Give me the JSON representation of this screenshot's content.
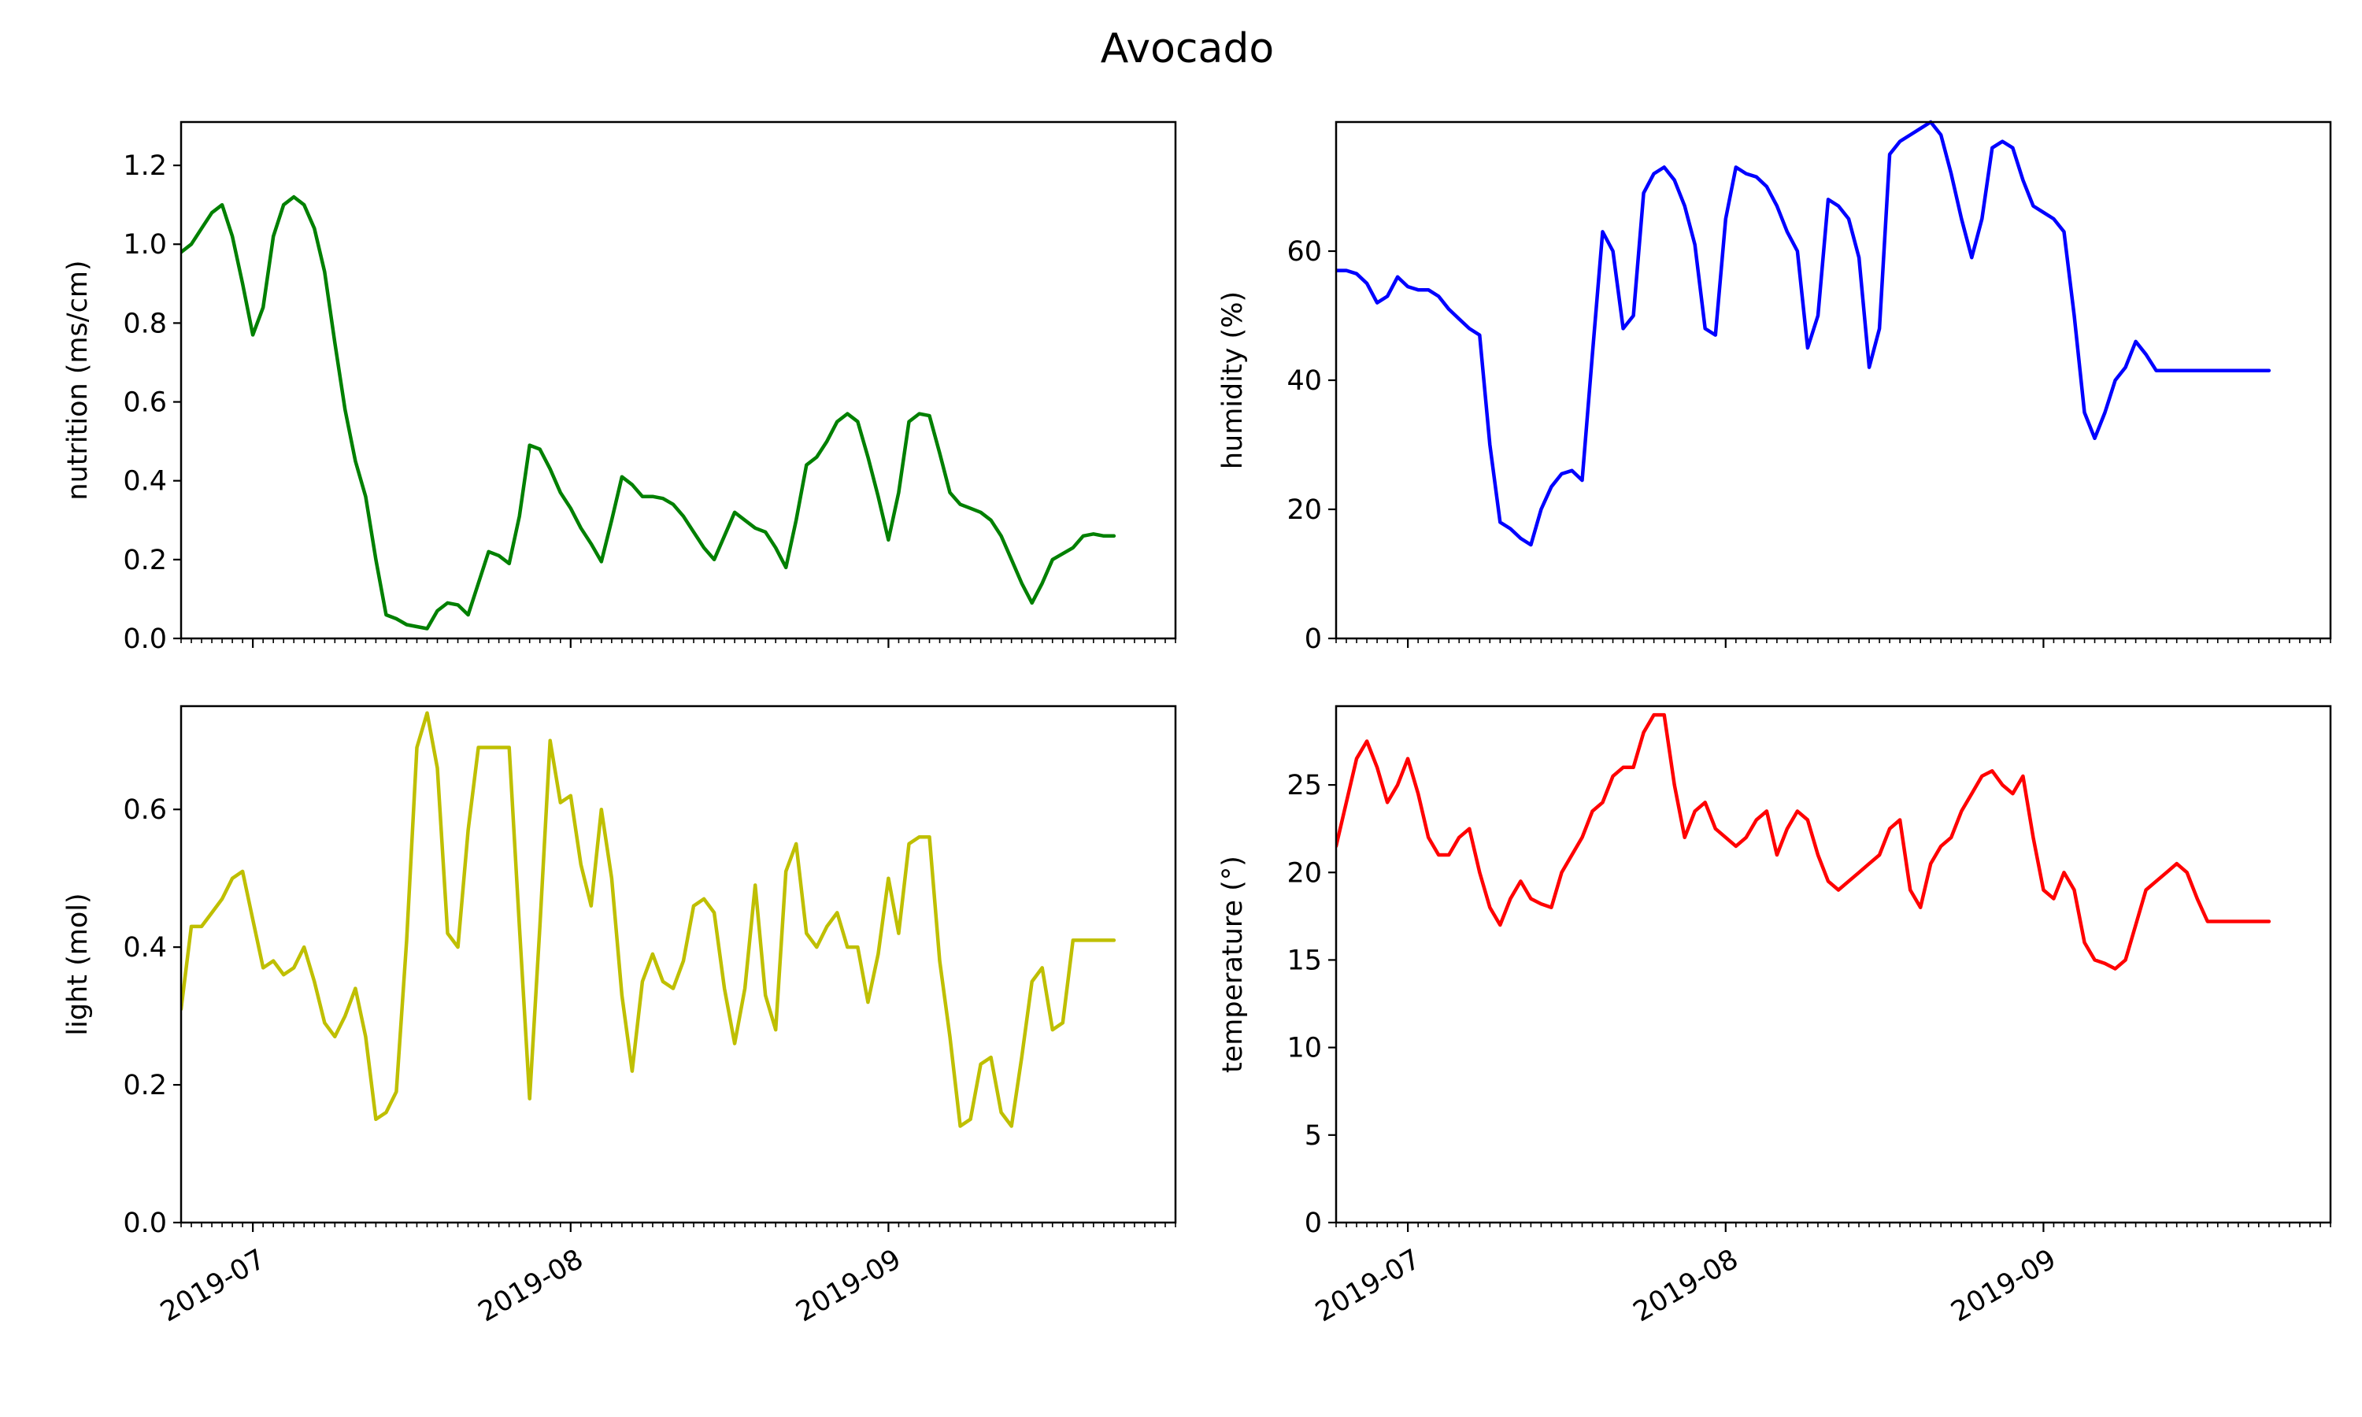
{
  "figure": {
    "title": "Avocado"
  },
  "chart_data": [
    {
      "type": "line",
      "name": "nutrition",
      "ylabel": "nutrition (ms/cm)",
      "xlabel": "",
      "xlim": [
        "2019-06-24",
        "2019-09-29"
      ],
      "ylim": [
        0,
        1.31
      ],
      "yticks": [
        0.0,
        0.2,
        0.4,
        0.6,
        0.8,
        1.0,
        1.2
      ],
      "ytick_labels": [
        "0.0",
        "0.2",
        "0.4",
        "0.6",
        "0.8",
        "1.0",
        "1.2"
      ],
      "xticks": [
        "2019-07-01",
        "2019-08-01",
        "2019-09-01"
      ],
      "xtick_labels": [],
      "grid": false,
      "color": "#008000",
      "x": [
        "2019-06-24",
        "2019-06-25",
        "2019-06-26",
        "2019-06-27",
        "2019-06-28",
        "2019-06-29",
        "2019-06-30",
        "2019-07-01",
        "2019-07-02",
        "2019-07-03",
        "2019-07-04",
        "2019-07-05",
        "2019-07-06",
        "2019-07-07",
        "2019-07-08",
        "2019-07-09",
        "2019-07-10",
        "2019-07-11",
        "2019-07-12",
        "2019-07-13",
        "2019-07-14",
        "2019-07-15",
        "2019-07-16",
        "2019-07-17",
        "2019-07-18",
        "2019-07-19",
        "2019-07-20",
        "2019-07-21",
        "2019-07-22",
        "2019-07-23",
        "2019-07-24",
        "2019-07-25",
        "2019-07-26",
        "2019-07-27",
        "2019-07-28",
        "2019-07-29",
        "2019-07-30",
        "2019-07-31",
        "2019-08-01",
        "2019-08-02",
        "2019-08-03",
        "2019-08-04",
        "2019-08-05",
        "2019-08-06",
        "2019-08-07",
        "2019-08-08",
        "2019-08-09",
        "2019-08-10",
        "2019-08-11",
        "2019-08-12",
        "2019-08-13",
        "2019-08-14",
        "2019-08-15",
        "2019-08-16",
        "2019-08-17",
        "2019-08-18",
        "2019-08-19",
        "2019-08-20",
        "2019-08-21",
        "2019-08-22",
        "2019-08-23",
        "2019-08-24",
        "2019-08-25",
        "2019-08-26",
        "2019-08-27",
        "2019-08-28",
        "2019-08-29",
        "2019-08-30",
        "2019-08-31",
        "2019-09-01",
        "2019-09-02",
        "2019-09-03",
        "2019-09-04",
        "2019-09-05",
        "2019-09-06",
        "2019-09-07",
        "2019-09-08",
        "2019-09-09",
        "2019-09-10",
        "2019-09-11",
        "2019-09-12",
        "2019-09-13",
        "2019-09-14",
        "2019-09-15",
        "2019-09-16",
        "2019-09-17",
        "2019-09-18",
        "2019-09-19",
        "2019-09-20",
        "2019-09-21",
        "2019-09-22",
        "2019-09-23"
      ],
      "y": [
        0.98,
        1.0,
        1.04,
        1.08,
        1.1,
        1.02,
        0.9,
        0.77,
        0.84,
        1.02,
        1.1,
        1.12,
        1.1,
        1.04,
        0.93,
        0.75,
        0.58,
        0.45,
        0.36,
        0.2,
        0.06,
        0.05,
        0.035,
        0.03,
        0.025,
        0.07,
        0.09,
        0.085,
        0.06,
        0.14,
        0.22,
        0.21,
        0.19,
        0.31,
        0.49,
        0.48,
        0.43,
        0.37,
        0.33,
        0.28,
        0.24,
        0.195,
        0.3,
        0.41,
        0.39,
        0.36,
        0.36,
        0.355,
        0.34,
        0.31,
        0.27,
        0.23,
        0.2,
        0.26,
        0.32,
        0.3,
        0.28,
        0.27,
        0.23,
        0.18,
        0.3,
        0.44,
        0.46,
        0.5,
        0.55,
        0.57,
        0.55,
        0.46,
        0.36,
        0.25,
        0.37,
        0.55,
        0.57,
        0.565,
        0.47,
        0.37,
        0.34,
        0.33,
        0.32,
        0.3,
        0.26,
        0.2,
        0.14,
        0.09,
        0.14,
        0.2,
        0.215,
        0.23,
        0.26,
        0.265,
        0.26,
        0.26
      ]
    },
    {
      "type": "line",
      "name": "humidity",
      "ylabel": "humidity (%)",
      "xlabel": "",
      "xlim": [
        "2019-06-24",
        "2019-09-29"
      ],
      "ylim": [
        0,
        80
      ],
      "yticks": [
        0,
        20,
        40,
        60
      ],
      "ytick_labels": [
        "0",
        "20",
        "40",
        "60"
      ],
      "xticks": [
        "2019-07-01",
        "2019-08-01",
        "2019-09-01"
      ],
      "xtick_labels": [],
      "grid": false,
      "color": "#0000ff",
      "x": [
        "2019-06-24",
        "2019-06-25",
        "2019-06-26",
        "2019-06-27",
        "2019-06-28",
        "2019-06-29",
        "2019-06-30",
        "2019-07-01",
        "2019-07-02",
        "2019-07-03",
        "2019-07-04",
        "2019-07-05",
        "2019-07-06",
        "2019-07-07",
        "2019-07-08",
        "2019-07-09",
        "2019-07-10",
        "2019-07-11",
        "2019-07-12",
        "2019-07-13",
        "2019-07-14",
        "2019-07-15",
        "2019-07-16",
        "2019-07-17",
        "2019-07-18",
        "2019-07-19",
        "2019-07-20",
        "2019-07-21",
        "2019-07-22",
        "2019-07-23",
        "2019-07-24",
        "2019-07-25",
        "2019-07-26",
        "2019-07-27",
        "2019-07-28",
        "2019-07-29",
        "2019-07-30",
        "2019-07-31",
        "2019-08-01",
        "2019-08-02",
        "2019-08-03",
        "2019-08-04",
        "2019-08-05",
        "2019-08-06",
        "2019-08-07",
        "2019-08-08",
        "2019-08-09",
        "2019-08-10",
        "2019-08-11",
        "2019-08-12",
        "2019-08-13",
        "2019-08-14",
        "2019-08-15",
        "2019-08-16",
        "2019-08-17",
        "2019-08-18",
        "2019-08-19",
        "2019-08-20",
        "2019-08-21",
        "2019-08-22",
        "2019-08-23",
        "2019-08-24",
        "2019-08-25",
        "2019-08-26",
        "2019-08-27",
        "2019-08-28",
        "2019-08-29",
        "2019-08-30",
        "2019-08-31",
        "2019-09-01",
        "2019-09-02",
        "2019-09-03",
        "2019-09-04",
        "2019-09-05",
        "2019-09-06",
        "2019-09-07",
        "2019-09-08",
        "2019-09-09",
        "2019-09-10",
        "2019-09-11",
        "2019-09-12",
        "2019-09-13",
        "2019-09-14",
        "2019-09-15",
        "2019-09-16",
        "2019-09-17",
        "2019-09-18",
        "2019-09-19",
        "2019-09-20",
        "2019-09-21",
        "2019-09-22",
        "2019-09-23"
      ],
      "y": [
        57,
        57,
        56.5,
        55,
        52,
        53,
        56,
        54.5,
        54,
        54,
        53,
        51,
        49.5,
        48,
        47,
        30,
        18,
        17,
        15.5,
        14.5,
        20,
        23.5,
        25.5,
        26,
        24.5,
        44,
        63,
        60,
        48,
        50,
        69,
        72,
        73,
        71,
        67,
        61,
        48,
        47,
        65,
        73,
        72,
        71.5,
        70,
        67,
        63,
        60,
        45,
        50,
        68,
        67,
        65,
        59,
        42,
        48,
        75,
        77,
        78,
        79,
        80,
        78,
        72,
        65,
        59,
        65,
        76,
        77,
        76,
        71,
        67,
        66,
        65,
        63,
        50,
        35,
        31,
        35,
        40,
        42,
        46,
        44,
        41.5,
        41.5,
        41.5,
        41.5,
        41.5,
        41.5,
        41.5,
        41.5,
        41.5,
        41.5,
        41.5,
        41.5
      ]
    },
    {
      "type": "line",
      "name": "light",
      "ylabel": "light (mol)",
      "xlabel": "",
      "xlim": [
        "2019-06-24",
        "2019-09-29"
      ],
      "ylim": [
        0,
        0.75
      ],
      "yticks": [
        0.0,
        0.2,
        0.4,
        0.6
      ],
      "ytick_labels": [
        "0.0",
        "0.2",
        "0.4",
        "0.6"
      ],
      "xticks": [
        "2019-07-01",
        "2019-08-01",
        "2019-09-01"
      ],
      "xtick_labels": [
        "2019-07",
        "2019-08",
        "2019-09"
      ],
      "grid": false,
      "color": "#bfbf00",
      "x": [
        "2019-06-24",
        "2019-06-25",
        "2019-06-26",
        "2019-06-27",
        "2019-06-28",
        "2019-06-29",
        "2019-06-30",
        "2019-07-01",
        "2019-07-02",
        "2019-07-03",
        "2019-07-04",
        "2019-07-05",
        "2019-07-06",
        "2019-07-07",
        "2019-07-08",
        "2019-07-09",
        "2019-07-10",
        "2019-07-11",
        "2019-07-12",
        "2019-07-13",
        "2019-07-14",
        "2019-07-15",
        "2019-07-16",
        "2019-07-17",
        "2019-07-18",
        "2019-07-19",
        "2019-07-20",
        "2019-07-21",
        "2019-07-22",
        "2019-07-23",
        "2019-07-24",
        "2019-07-25",
        "2019-07-26",
        "2019-07-27",
        "2019-07-28",
        "2019-07-29",
        "2019-07-30",
        "2019-07-31",
        "2019-08-01",
        "2019-08-02",
        "2019-08-03",
        "2019-08-04",
        "2019-08-05",
        "2019-08-06",
        "2019-08-07",
        "2019-08-08",
        "2019-08-09",
        "2019-08-10",
        "2019-08-11",
        "2019-08-12",
        "2019-08-13",
        "2019-08-14",
        "2019-08-15",
        "2019-08-16",
        "2019-08-17",
        "2019-08-18",
        "2019-08-19",
        "2019-08-20",
        "2019-08-21",
        "2019-08-22",
        "2019-08-23",
        "2019-08-24",
        "2019-08-25",
        "2019-08-26",
        "2019-08-27",
        "2019-08-28",
        "2019-08-29",
        "2019-08-30",
        "2019-08-31",
        "2019-09-01",
        "2019-09-02",
        "2019-09-03",
        "2019-09-04",
        "2019-09-05",
        "2019-09-06",
        "2019-09-07",
        "2019-09-08",
        "2019-09-09",
        "2019-09-10",
        "2019-09-11",
        "2019-09-12",
        "2019-09-13",
        "2019-09-14",
        "2019-09-15",
        "2019-09-16",
        "2019-09-17",
        "2019-09-18",
        "2019-09-19",
        "2019-09-20",
        "2019-09-21",
        "2019-09-22",
        "2019-09-23"
      ],
      "y": [
        0.31,
        0.43,
        0.43,
        0.45,
        0.47,
        0.5,
        0.51,
        0.44,
        0.37,
        0.38,
        0.36,
        0.37,
        0.4,
        0.35,
        0.29,
        0.27,
        0.3,
        0.34,
        0.27,
        0.15,
        0.16,
        0.19,
        0.41,
        0.69,
        0.74,
        0.66,
        0.42,
        0.4,
        0.57,
        0.69,
        0.69,
        0.69,
        0.69,
        0.43,
        0.18,
        0.43,
        0.7,
        0.61,
        0.62,
        0.52,
        0.46,
        0.6,
        0.5,
        0.33,
        0.22,
        0.35,
        0.39,
        0.35,
        0.34,
        0.38,
        0.46,
        0.47,
        0.45,
        0.34,
        0.26,
        0.34,
        0.49,
        0.33,
        0.28,
        0.51,
        0.55,
        0.42,
        0.4,
        0.43,
        0.45,
        0.4,
        0.4,
        0.32,
        0.39,
        0.5,
        0.42,
        0.55,
        0.56,
        0.56,
        0.38,
        0.27,
        0.14,
        0.15,
        0.23,
        0.24,
        0.16,
        0.14,
        0.24,
        0.35,
        0.37,
        0.28,
        0.29,
        0.41,
        0.41,
        0.41,
        0.41,
        0.41
      ]
    },
    {
      "type": "line",
      "name": "temperature",
      "ylabel": "temperature (°)",
      "xlabel": "",
      "xlim": [
        "2019-06-24",
        "2019-09-29"
      ],
      "ylim": [
        0,
        29.5
      ],
      "yticks": [
        0,
        5,
        10,
        15,
        20,
        25
      ],
      "ytick_labels": [
        "0",
        "5",
        "10",
        "15",
        "20",
        "25"
      ],
      "xticks": [
        "2019-07-01",
        "2019-08-01",
        "2019-09-01"
      ],
      "xtick_labels": [
        "2019-07",
        "2019-08",
        "2019-09"
      ],
      "grid": false,
      "color": "#ff0000",
      "x": [
        "2019-06-24",
        "2019-06-25",
        "2019-06-26",
        "2019-06-27",
        "2019-06-28",
        "2019-06-29",
        "2019-06-30",
        "2019-07-01",
        "2019-07-02",
        "2019-07-03",
        "2019-07-04",
        "2019-07-05",
        "2019-07-06",
        "2019-07-07",
        "2019-07-08",
        "2019-07-09",
        "2019-07-10",
        "2019-07-11",
        "2019-07-12",
        "2019-07-13",
        "2019-07-14",
        "2019-07-15",
        "2019-07-16",
        "2019-07-17",
        "2019-07-18",
        "2019-07-19",
        "2019-07-20",
        "2019-07-21",
        "2019-07-22",
        "2019-07-23",
        "2019-07-24",
        "2019-07-25",
        "2019-07-26",
        "2019-07-27",
        "2019-07-28",
        "2019-07-29",
        "2019-07-30",
        "2019-07-31",
        "2019-08-01",
        "2019-08-02",
        "2019-08-03",
        "2019-08-04",
        "2019-08-05",
        "2019-08-06",
        "2019-08-07",
        "2019-08-08",
        "2019-08-09",
        "2019-08-10",
        "2019-08-11",
        "2019-08-12",
        "2019-08-13",
        "2019-08-14",
        "2019-08-15",
        "2019-08-16",
        "2019-08-17",
        "2019-08-18",
        "2019-08-19",
        "2019-08-20",
        "2019-08-21",
        "2019-08-22",
        "2019-08-23",
        "2019-08-24",
        "2019-08-25",
        "2019-08-26",
        "2019-08-27",
        "2019-08-28",
        "2019-08-29",
        "2019-08-30",
        "2019-08-31",
        "2019-09-01",
        "2019-09-02",
        "2019-09-03",
        "2019-09-04",
        "2019-09-05",
        "2019-09-06",
        "2019-09-07",
        "2019-09-08",
        "2019-09-09",
        "2019-09-10",
        "2019-09-11",
        "2019-09-12",
        "2019-09-13",
        "2019-09-14",
        "2019-09-15",
        "2019-09-16",
        "2019-09-17",
        "2019-09-18",
        "2019-09-19",
        "2019-09-20",
        "2019-09-21",
        "2019-09-22",
        "2019-09-23"
      ],
      "y": [
        21.5,
        24,
        26.5,
        27.5,
        26,
        24,
        25,
        26.5,
        24.5,
        22,
        21,
        21,
        22,
        22.5,
        20,
        18,
        17,
        18.5,
        19.5,
        18.5,
        18.2,
        18,
        20,
        21,
        22,
        23.5,
        24,
        25.5,
        26,
        26,
        28,
        29,
        29,
        25,
        22,
        23.5,
        24,
        22.5,
        22,
        21.5,
        22,
        23,
        23.5,
        21,
        22.5,
        23.5,
        23,
        21,
        19.5,
        19,
        19.5,
        20,
        20.5,
        21,
        22.5,
        23,
        19,
        18,
        20.5,
        21.5,
        22,
        23.5,
        24.5,
        25.5,
        25.8,
        25,
        24.5,
        25.5,
        22,
        19,
        18.5,
        20,
        19,
        16,
        15,
        14.8,
        14.5,
        15,
        17,
        19,
        19.5,
        20,
        20.5,
        20,
        18.5,
        17.2,
        17.2,
        17.2,
        17.2,
        17.2,
        17.2,
        17.2
      ]
    }
  ]
}
